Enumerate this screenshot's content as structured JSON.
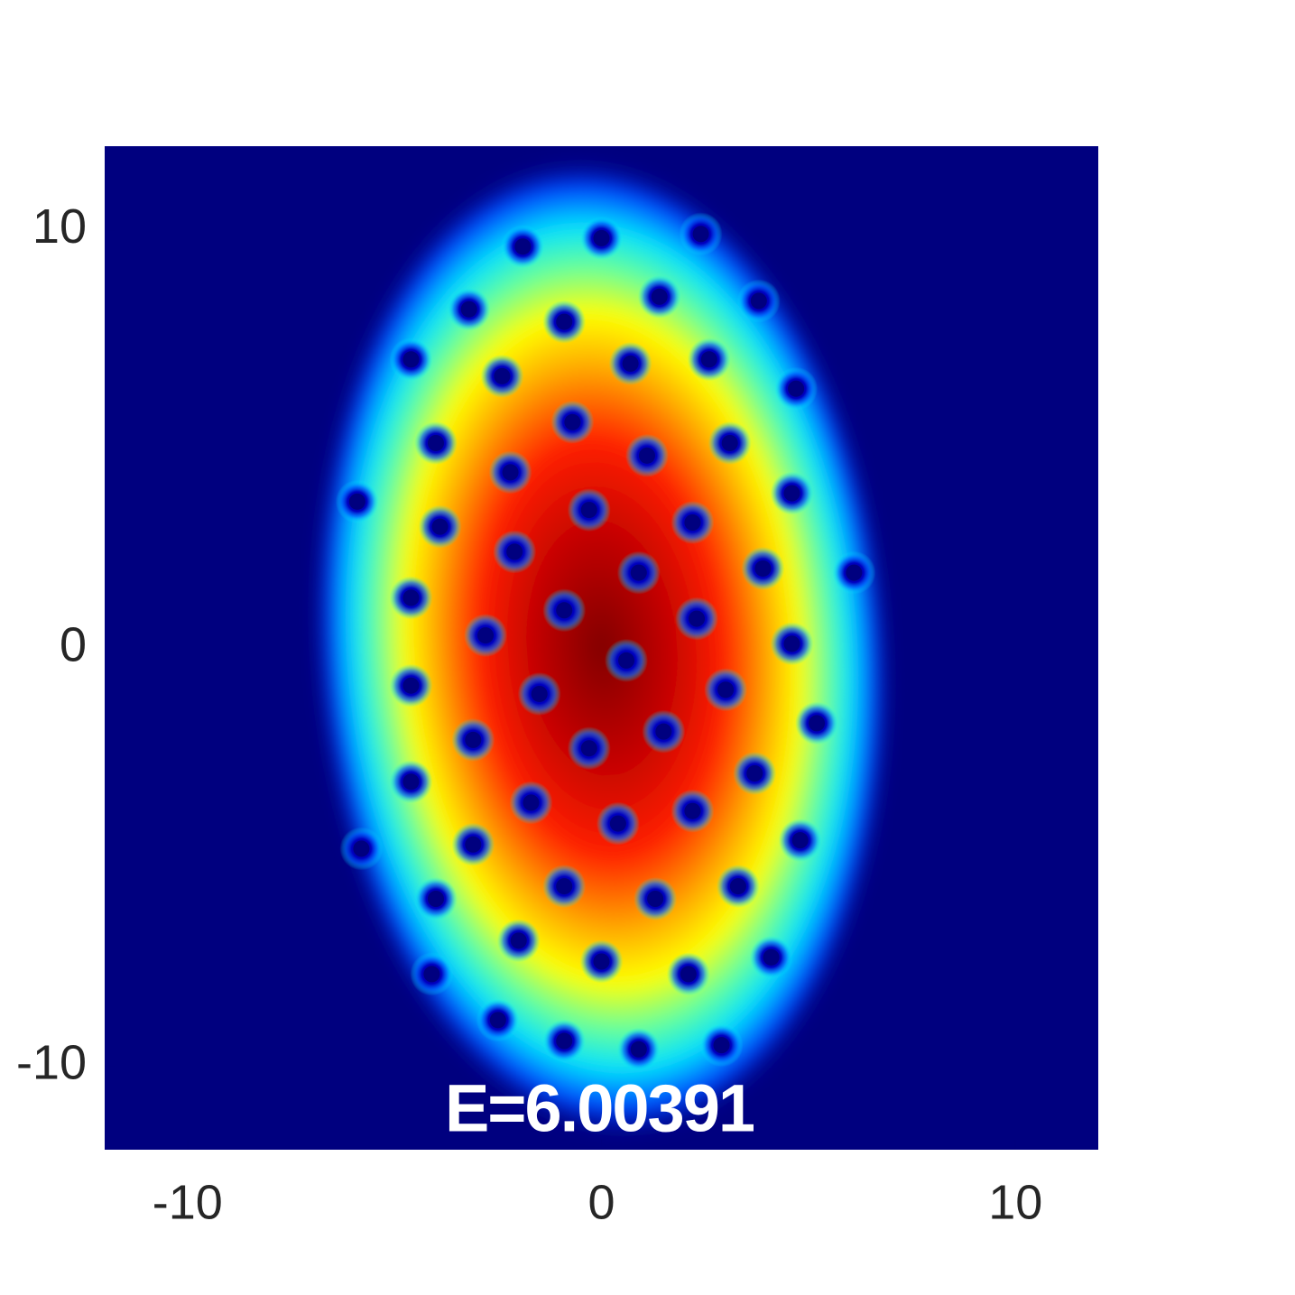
{
  "chart_data": {
    "type": "heatmap",
    "annotation": "E=6.00391",
    "xlim": [
      -12,
      12
    ],
    "ylim": [
      -12,
      12
    ],
    "xticks": [
      -10,
      0,
      10
    ],
    "yticks": [
      -10,
      0,
      10
    ],
    "background_color": "#00007f",
    "marker_color": "#00007f",
    "x": [
      -1.9,
      0.0,
      2.4,
      -3.2,
      -0.9,
      1.4,
      3.8,
      -4.6,
      -2.4,
      0.7,
      2.6,
      4.7,
      -0.7,
      1.1,
      3.1,
      -4.0,
      -2.2,
      4.6,
      -5.9,
      -0.3,
      2.2,
      -3.9,
      -2.1,
      3.9,
      6.1,
      0.9,
      -4.6,
      -0.9,
      2.3,
      -2.8,
      0.6,
      4.6,
      -4.6,
      -1.5,
      3.0,
      -3.1,
      -0.3,
      1.5,
      5.2,
      -4.6,
      3.7,
      -1.7,
      0.4,
      2.2,
      -3.1,
      4.8,
      -5.8,
      -0.9,
      1.3,
      3.3,
      -4.0,
      -2.0,
      0.0,
      2.1,
      4.1,
      -4.1,
      -2.5,
      -0.9,
      0.9,
      2.9
    ],
    "y": [
      9.6,
      9.8,
      9.9,
      8.1,
      7.8,
      8.4,
      8.3,
      6.9,
      6.5,
      6.8,
      6.9,
      6.2,
      5.4,
      4.6,
      4.9,
      4.9,
      4.2,
      3.7,
      3.5,
      3.3,
      3.0,
      2.9,
      2.3,
      1.9,
      1.8,
      1.8,
      1.2,
      0.9,
      0.7,
      0.3,
      -0.3,
      0.1,
      -0.9,
      -1.1,
      -1.0,
      -2.2,
      -2.4,
      -2.0,
      -1.8,
      -3.2,
      -3.0,
      -3.7,
      -4.2,
      -3.9,
      -4.7,
      -4.6,
      -4.8,
      -5.7,
      -6.0,
      -5.7,
      -6.0,
      -7.0,
      -7.5,
      -7.8,
      -7.4,
      -7.8,
      -8.9,
      -9.4,
      -9.6,
      -9.5
    ]
  }
}
